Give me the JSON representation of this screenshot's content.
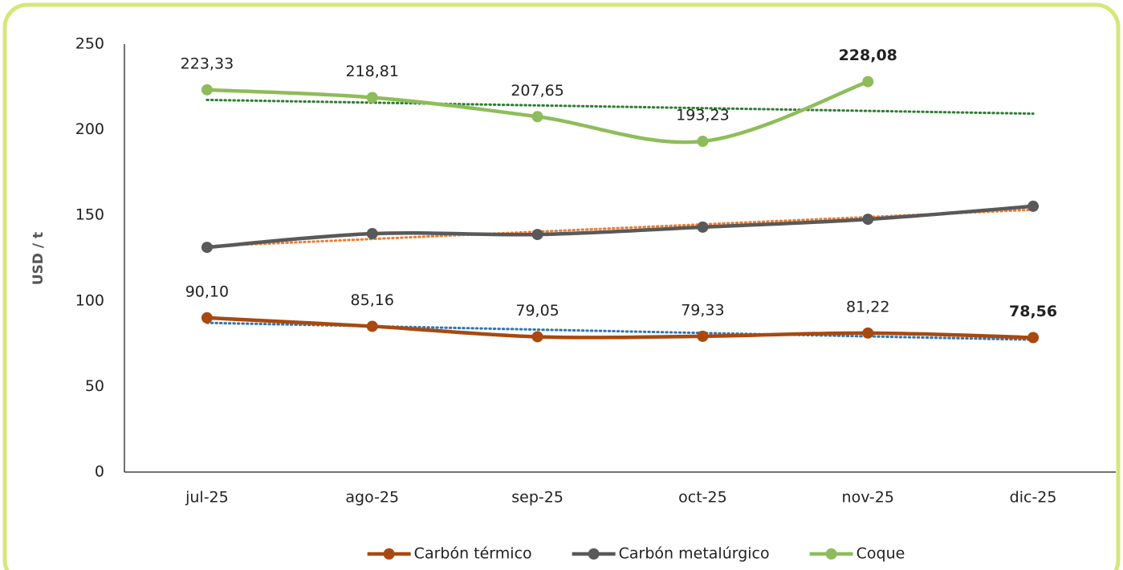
{
  "chart_data": {
    "type": "line",
    "y_label": "USD / t",
    "categories": [
      "jul-25",
      "ago-25",
      "sep-25",
      "oct-25",
      "nov-25",
      "dic-25"
    ],
    "ylim": [
      0,
      250
    ],
    "yticks": [
      0,
      50,
      100,
      150,
      200,
      250
    ],
    "grid": false,
    "smooth": true,
    "trendline": true,
    "legend": "bottom",
    "series": [
      {
        "name": "Carbón térmico",
        "color": "#a9490f",
        "trendline_color": "#2e75b6",
        "values": [
          90.1,
          85.16,
          79.05,
          79.33,
          81.22,
          78.56
        ],
        "value_labels": [
          "90,10",
          "85,16",
          "79,05",
          "79,33",
          "81,22",
          "78,56"
        ]
      },
      {
        "name": "Carbón metalúrgico",
        "color": "#595959",
        "trendline_color": "#ed7d31",
        "values": [
          131.3,
          139.3,
          138.8,
          143.1,
          147.7,
          155.3
        ]
      },
      {
        "name": "Coque",
        "color": "#8fbc5a",
        "trendline_color": "#2e7d32",
        "values": [
          223.33,
          218.81,
          207.65,
          193.23,
          228.08,
          null
        ],
        "value_labels": [
          "223,33",
          "218,81",
          "207,65",
          "193,23",
          "228,08",
          null
        ]
      }
    ]
  }
}
